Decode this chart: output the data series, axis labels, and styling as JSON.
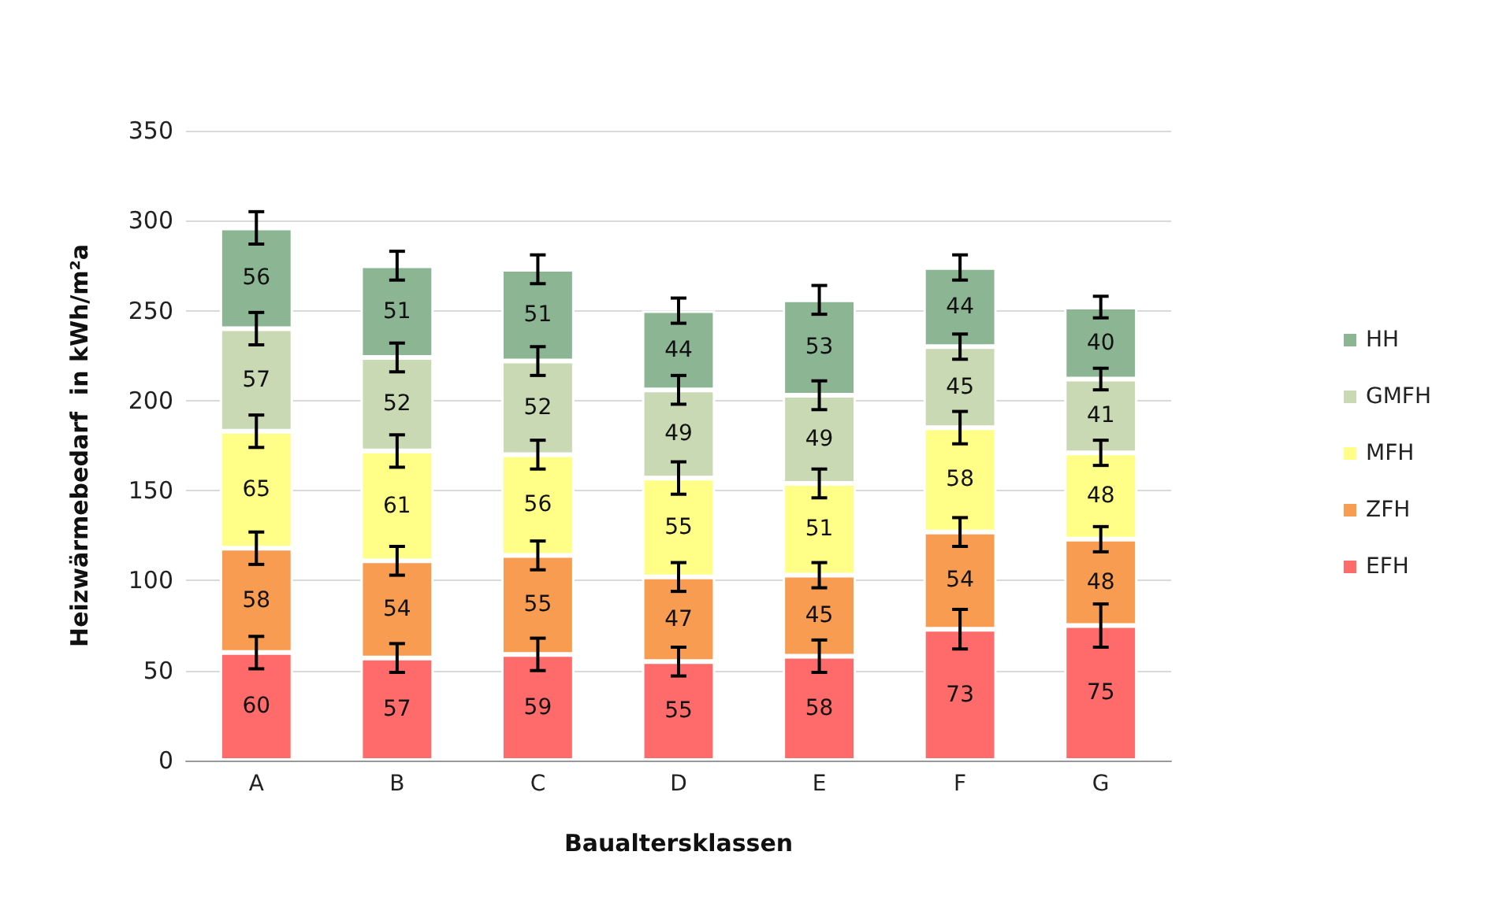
{
  "chart_data": {
    "type": "bar",
    "stacked": true,
    "xlabel": "Baualtersklassen",
    "ylabel": "Heizwärmebedarf  in kWh/m²a",
    "categories": [
      "A",
      "B",
      "C",
      "D",
      "E",
      "F",
      "G"
    ],
    "series": [
      {
        "name": "EFH",
        "color": "#ff6b6b",
        "values": [
          60,
          57,
          59,
          55,
          58,
          73,
          75
        ],
        "errors": [
          9,
          8,
          9,
          8,
          9,
          11,
          12
        ]
      },
      {
        "name": "ZFH",
        "color": "#f79c50",
        "values": [
          58,
          54,
          55,
          47,
          45,
          54,
          48
        ],
        "errors": [
          9,
          8,
          8,
          8,
          7,
          8,
          7
        ]
      },
      {
        "name": "MFH",
        "color": "#ffff88",
        "values": [
          65,
          61,
          56,
          55,
          51,
          58,
          48
        ],
        "errors": [
          9,
          9,
          8,
          9,
          8,
          9,
          7
        ]
      },
      {
        "name": "GMFH",
        "color": "#c9d9b3",
        "values": [
          57,
          52,
          52,
          49,
          49,
          45,
          41
        ],
        "errors": [
          9,
          8,
          8,
          8,
          8,
          7,
          6
        ]
      },
      {
        "name": "HH",
        "color": "#8bb593",
        "values": [
          56,
          51,
          51,
          44,
          53,
          44,
          40
        ],
        "errors": [
          9,
          8,
          8,
          7,
          8,
          7,
          6
        ]
      }
    ],
    "ylim": [
      0,
      350
    ],
    "yticks": [
      0,
      50,
      100,
      150,
      200,
      250,
      300,
      350
    ],
    "grid": "y",
    "legend": "right",
    "data_labels": true
  }
}
